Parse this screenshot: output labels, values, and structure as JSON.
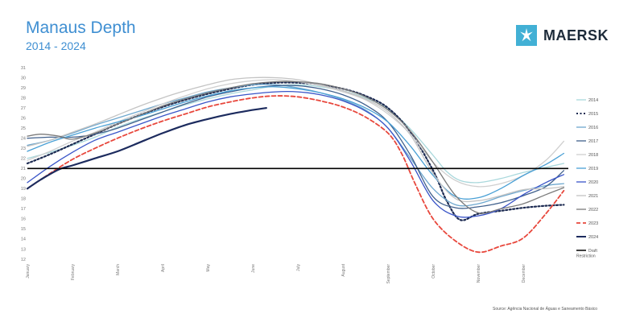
{
  "header": {
    "title": "Manaus Depth",
    "subtitle": "2014 - 2024"
  },
  "logo": {
    "text": "MAERSK",
    "color": "#42b0d5",
    "icon": "star-icon"
  },
  "source_note": "Source: Agência Nacional de Águas e Saneamento Básico",
  "chart_data": {
    "type": "line",
    "title": "Manaus Depth",
    "subtitle": "2014 - 2024",
    "xlabel": "",
    "ylabel": "",
    "xlim": [
      0,
      12
    ],
    "ylim": [
      12,
      31
    ],
    "yticks": [
      12,
      13,
      14,
      15,
      16,
      17,
      18,
      19,
      20,
      21,
      22,
      23,
      24,
      25,
      26,
      27,
      28,
      29,
      30,
      31
    ],
    "months": [
      "January",
      "February",
      "March",
      "April",
      "May",
      "June",
      "July",
      "August",
      "September",
      "October",
      "November",
      "December"
    ],
    "grid": false,
    "legend": "right",
    "reference_line": {
      "name": "Draft Restriction",
      "value": 21,
      "color": "#000000"
    },
    "series": [
      {
        "name": "2014",
        "color": "#a9d8dc",
        "dash": "",
        "width": 1.3,
        "x": [
          0,
          0.5,
          1,
          1.5,
          2,
          2.5,
          3,
          3.5,
          4,
          4.5,
          5,
          5.5,
          6,
          6.5,
          7,
          7.5,
          8,
          8.5,
          9,
          9.3,
          9.6,
          10,
          10.5,
          11,
          11.5,
          11.9
        ],
        "y": [
          22.0,
          22.6,
          23.3,
          24.1,
          25.1,
          25.9,
          26.6,
          27.3,
          27.9,
          28.4,
          28.8,
          29.2,
          29.3,
          29.1,
          28.7,
          28.0,
          26.9,
          24.9,
          22.3,
          20.7,
          19.8,
          19.6,
          20.0,
          20.6,
          21.1,
          21.5
        ]
      },
      {
        "name": "2015",
        "color": "#1d2b52",
        "dash": "2,2.5",
        "width": 2.2,
        "x": [
          0,
          0.5,
          1,
          1.5,
          2,
          2.5,
          3,
          3.5,
          4,
          4.5,
          5,
          5.5,
          6,
          6.5,
          7,
          7.5,
          8,
          8.5,
          9,
          9.3,
          9.6,
          10,
          10.5,
          11,
          11.5,
          11.9
        ],
        "y": [
          21.5,
          22.4,
          23.4,
          24.4,
          25.4,
          26.3,
          27.1,
          27.8,
          28.4,
          28.9,
          29.3,
          29.5,
          29.5,
          29.3,
          28.9,
          28.2,
          27.0,
          24.6,
          20.8,
          17.8,
          15.9,
          16.5,
          16.8,
          17.1,
          17.3,
          17.4
        ]
      },
      {
        "name": "2016",
        "color": "#6ea8cf",
        "dash": "",
        "width": 1.3,
        "x": [
          0,
          0.5,
          1,
          1.5,
          2,
          2.5,
          3,
          3.5,
          4,
          4.5,
          5,
          5.5,
          6,
          6.5,
          7,
          7.5,
          8,
          8.5,
          9,
          9.5,
          10,
          10.5,
          11,
          11.5,
          11.9
        ],
        "y": [
          23.3,
          23.8,
          24.5,
          25.3,
          26.0,
          26.7,
          27.4,
          28.0,
          28.6,
          29.0,
          29.3,
          29.3,
          29.0,
          28.5,
          27.8,
          26.8,
          25.0,
          22.0,
          19.0,
          17.4,
          17.5,
          18.2,
          18.8,
          19.3,
          19.5
        ]
      },
      {
        "name": "2017",
        "color": "#40608c",
        "dash": "",
        "width": 1.3,
        "x": [
          0,
          0.5,
          1,
          1.5,
          2,
          2.5,
          3,
          3.5,
          4,
          4.5,
          5,
          5.5,
          6,
          6.5,
          7,
          7.5,
          8,
          8.5,
          9,
          9.5,
          10,
          10.5,
          11,
          11.5,
          11.9
        ],
        "y": [
          24.0,
          24.1,
          24.1,
          24.4,
          25.0,
          25.8,
          26.6,
          27.4,
          28.1,
          28.6,
          29.0,
          29.2,
          29.2,
          28.9,
          28.3,
          27.3,
          25.6,
          22.3,
          18.2,
          17.1,
          17.2,
          17.6,
          18.3,
          19.2,
          20.8
        ]
      },
      {
        "name": "2018",
        "color": "#cfcfcf",
        "dash": "",
        "width": 1.3,
        "x": [
          0,
          0.5,
          1,
          1.5,
          2,
          2.5,
          3,
          3.5,
          4,
          4.5,
          5,
          5.5,
          6,
          6.5,
          7,
          7.5,
          8,
          8.5,
          9,
          9.5,
          10,
          10.5,
          11,
          11.5,
          11.9
        ],
        "y": [
          21.8,
          22.7,
          23.7,
          24.6,
          25.6,
          26.5,
          27.4,
          28.2,
          28.9,
          29.4,
          29.7,
          29.8,
          29.6,
          29.2,
          28.6,
          27.8,
          26.4,
          24.4,
          21.6,
          19.8,
          19.2,
          19.5,
          20.3,
          21.8,
          23.7
        ]
      },
      {
        "name": "2019",
        "color": "#4aa0d5",
        "dash": "",
        "width": 1.3,
        "x": [
          0,
          0.5,
          1,
          1.5,
          2,
          2.5,
          3,
          3.5,
          4,
          4.5,
          5,
          5.5,
          6,
          6.5,
          7,
          7.5,
          8,
          8.5,
          9,
          9.5,
          10,
          10.5,
          11,
          11.5,
          11.9
        ],
        "y": [
          22.7,
          23.6,
          24.3,
          25.0,
          25.6,
          26.2,
          26.9,
          27.6,
          28.2,
          28.7,
          29.0,
          29.1,
          28.9,
          28.5,
          27.9,
          27.0,
          25.6,
          23.2,
          20.3,
          18.2,
          18.1,
          19.0,
          20.3,
          21.4,
          22.5
        ]
      },
      {
        "name": "2020",
        "color": "#3a55c8",
        "dash": "",
        "width": 1.3,
        "x": [
          0,
          0.5,
          1,
          1.5,
          2,
          2.5,
          3,
          3.5,
          4,
          4.5,
          5,
          5.5,
          6,
          6.5,
          7,
          7.5,
          8,
          8.5,
          9,
          9.5,
          10,
          10.5,
          11,
          11.5,
          11.9
        ],
        "y": [
          19.6,
          21.2,
          22.6,
          23.8,
          24.6,
          25.4,
          26.2,
          26.9,
          27.6,
          28.1,
          28.4,
          28.6,
          28.6,
          28.3,
          27.7,
          26.7,
          25.0,
          21.7,
          17.8,
          16.3,
          16.3,
          17.0,
          18.4,
          19.6,
          20.4
        ]
      },
      {
        "name": "2021",
        "color": "#c4c4c4",
        "dash": "",
        "width": 1.3,
        "x": [
          0,
          0.5,
          1,
          1.5,
          2,
          2.5,
          3,
          3.5,
          4,
          4.5,
          5,
          5.5,
          6,
          6.5,
          7,
          7.5,
          8,
          8.5,
          9,
          9.5,
          10,
          10.5,
          11,
          11.5,
          11.9
        ],
        "y": [
          23.2,
          23.8,
          24.6,
          25.4,
          26.3,
          27.2,
          28.0,
          28.7,
          29.3,
          29.8,
          30.0,
          30.0,
          29.8,
          29.3,
          28.7,
          27.9,
          26.6,
          24.3,
          20.5,
          18.0,
          17.8,
          18.3,
          18.9,
          19.0,
          19.2
        ]
      },
      {
        "name": "2022",
        "color": "#7b7b7b",
        "dash": "",
        "width": 1.3,
        "x": [
          0,
          0.3,
          0.7,
          1,
          1.5,
          2,
          2.5,
          3,
          3.5,
          4,
          4.5,
          5,
          5.5,
          6,
          6.5,
          7,
          7.5,
          8,
          8.5,
          9,
          9.5,
          10,
          10.5,
          11,
          11.5,
          11.9
        ],
        "y": [
          24.2,
          24.4,
          24.2,
          23.9,
          24.5,
          25.4,
          26.3,
          27.2,
          27.9,
          28.5,
          29.0,
          29.4,
          29.6,
          29.6,
          29.4,
          28.9,
          28.1,
          26.8,
          24.7,
          21.6,
          18.3,
          16.6,
          17.0,
          17.5,
          18.4,
          19.1
        ]
      },
      {
        "name": "2023",
        "color": "#e8473c",
        "dash": "5,3",
        "width": 1.8,
        "x": [
          0,
          0.5,
          1,
          1.5,
          2,
          2.5,
          3,
          3.5,
          4,
          4.5,
          5,
          5.5,
          6,
          6.5,
          7,
          7.5,
          8,
          8.3,
          8.6,
          9,
          9.5,
          10,
          10.5,
          11,
          11.5,
          11.9
        ],
        "y": [
          19.0,
          20.5,
          21.9,
          23.0,
          24.0,
          24.9,
          25.7,
          26.4,
          27.1,
          27.6,
          28.0,
          28.2,
          28.1,
          27.7,
          27.1,
          26.1,
          24.5,
          22.5,
          19.5,
          16.0,
          13.8,
          12.7,
          13.3,
          14.1,
          16.5,
          18.8
        ]
      },
      {
        "name": "2024",
        "color": "#1c2b5e",
        "dash": "",
        "width": 2.2,
        "x": [
          0,
          0.3,
          0.7,
          1,
          1.5,
          2,
          2.5,
          3,
          3.5,
          4,
          4.5,
          5,
          5.3
        ],
        "y": [
          19.0,
          19.9,
          20.9,
          21.3,
          22.0,
          22.7,
          23.6,
          24.5,
          25.3,
          25.9,
          26.4,
          26.8,
          27.0
        ]
      }
    ]
  }
}
